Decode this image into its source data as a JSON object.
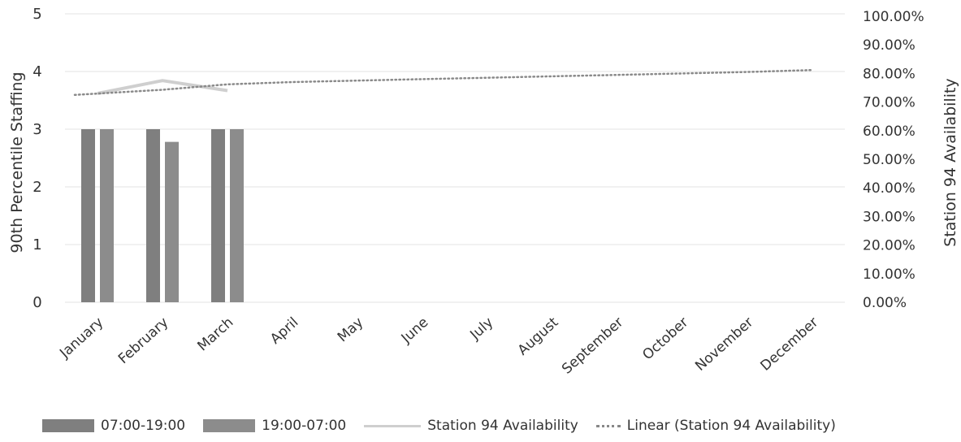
{
  "chart_data": {
    "type": "bar",
    "categories": [
      "January",
      "February",
      "March",
      "April",
      "May",
      "June",
      "July",
      "August",
      "September",
      "October",
      "November",
      "December"
    ],
    "series": [
      {
        "name": "07:00-19:00",
        "type": "bar",
        "axis": "left",
        "color": "#7f7f7f",
        "values": [
          3,
          3,
          3,
          null,
          null,
          null,
          null,
          null,
          null,
          null,
          null,
          null
        ]
      },
      {
        "name": "19:00-07:00",
        "type": "bar",
        "axis": "left",
        "color": "#8c8c8c",
        "values": [
          3,
          2.78,
          3,
          null,
          null,
          null,
          null,
          null,
          null,
          null,
          null,
          null
        ]
      },
      {
        "name": "Station 94 Availability",
        "type": "line",
        "axis": "right",
        "color": "#cfcfcf",
        "values": [
          0.73,
          0.775,
          0.74,
          null,
          null,
          null,
          null,
          null,
          null,
          null,
          null,
          null
        ]
      },
      {
        "name": "Linear (Station 94 Availability)",
        "type": "trendline",
        "axis": "right",
        "color": "#8a8a8a",
        "values": [
          0.725,
          0.743,
          0.762,
          0.77,
          0.775,
          0.78,
          0.785,
          0.79,
          0.795,
          0.8,
          0.805,
          0.812
        ]
      }
    ],
    "ylabel": "90th Percentile Staffing",
    "ylim": [
      0,
      5
    ],
    "yticks": [
      "0",
      "1",
      "2",
      "3",
      "4",
      "5"
    ],
    "y2label": "Station 94 Availability",
    "y2lim": [
      0,
      1
    ],
    "y2ticks": [
      "0.00%",
      "10.00%",
      "20.00%",
      "30.00%",
      "40.00%",
      "50.00%",
      "60.00%",
      "70.00%",
      "80.00%",
      "90.00%",
      "100.00%"
    ],
    "grid": true,
    "legend_position": "bottom"
  }
}
